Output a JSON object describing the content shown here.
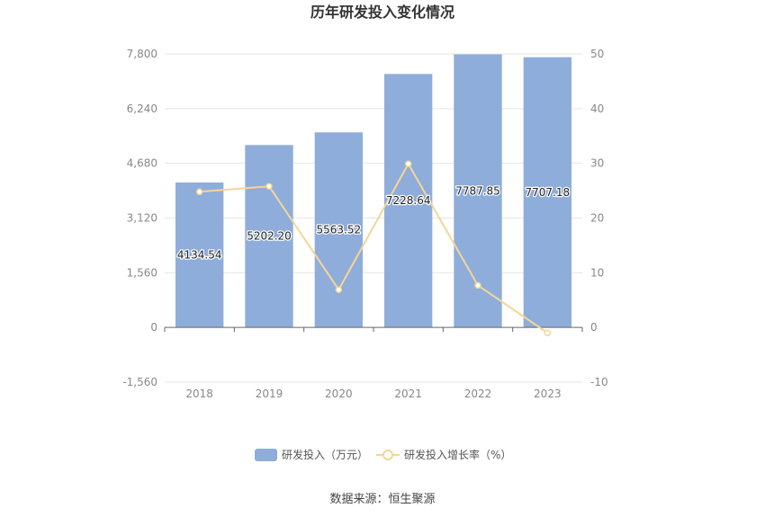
{
  "chart_data": {
    "type": "bar",
    "title": "历年研发投入变化情况",
    "categories": [
      "2018",
      "2019",
      "2020",
      "2021",
      "2022",
      "2023"
    ],
    "series": [
      {
        "name": "研发投入（万元）",
        "type": "bar",
        "axis": "left",
        "values": [
          4134.54,
          5202.2,
          5563.52,
          7228.64,
          7787.85,
          7707.18
        ],
        "labels": [
          "4134.54",
          "5202.20",
          "5563.52",
          "7228.64",
          "7787.85",
          "7707.18"
        ],
        "color": "#8eadda"
      },
      {
        "name": "研发投入增长率（%）",
        "type": "line",
        "axis": "right",
        "values": [
          24.8,
          25.8,
          6.9,
          29.9,
          7.7,
          -1.0
        ],
        "color": "#f5d596"
      }
    ],
    "y_left": {
      "ylim": [
        -1560,
        7800
      ],
      "ticks": [
        -1560,
        0,
        1560,
        3120,
        4680,
        6240,
        7800
      ],
      "tick_labels": [
        "-1,560",
        "0",
        "1,560",
        "3,120",
        "4,680",
        "6,240",
        "7,800"
      ]
    },
    "y_right": {
      "ylim": [
        -10,
        50
      ],
      "ticks": [
        -10,
        0,
        10,
        20,
        30,
        40,
        50
      ],
      "tick_labels": [
        "-10",
        "0",
        "10",
        "20",
        "30",
        "40",
        "50"
      ]
    },
    "grid": true,
    "legend": "bottom-center"
  },
  "footer": {
    "source": "数据来源：恒生聚源"
  }
}
